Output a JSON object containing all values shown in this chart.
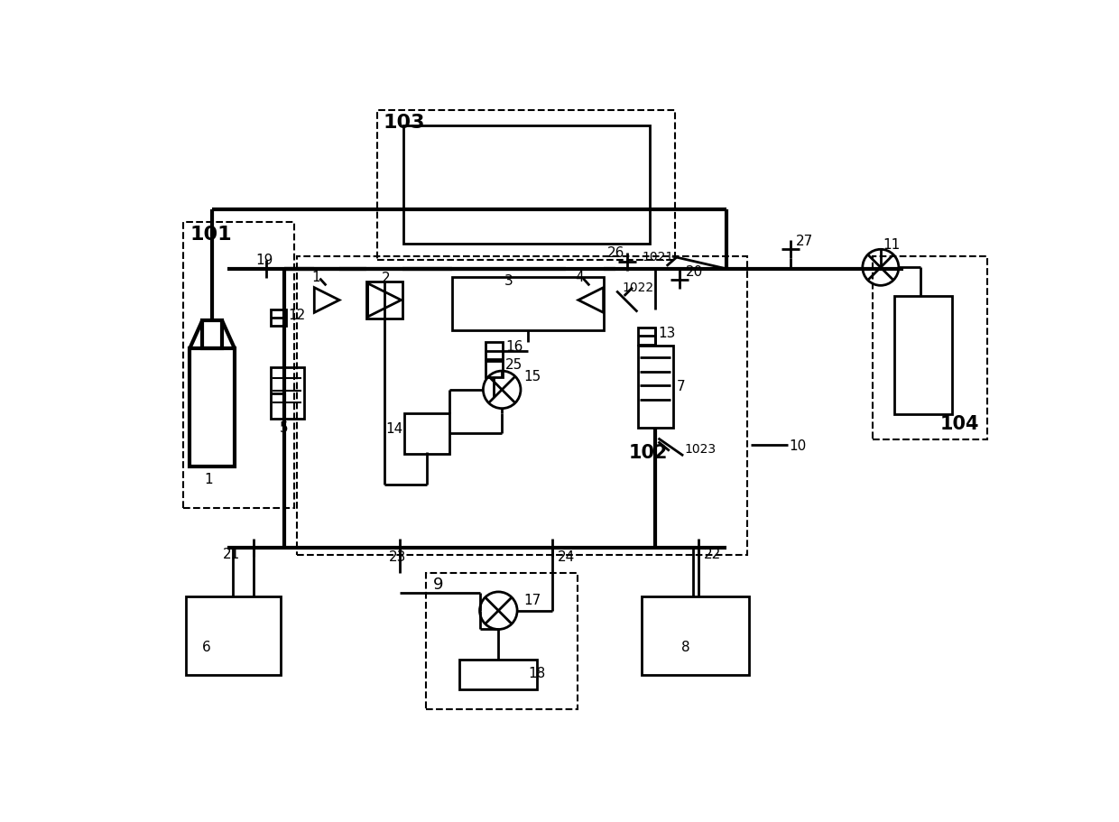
{
  "bg_color": "#ffffff",
  "line_color": "#000000",
  "lw": 2.0,
  "lw_thick": 3.0,
  "lw_thin": 1.5,
  "lw_dash": 1.5
}
